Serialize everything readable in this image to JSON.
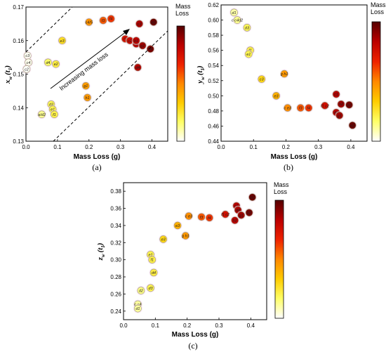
{
  "colors": {
    "cmap": [
      "#ffffff",
      "#ffff66",
      "#ffcc00",
      "#ff8800",
      "#ee2200",
      "#bb0000",
      "#550000"
    ],
    "marker_stroke": "#9a9a7a",
    "dashed_line": "#000000"
  },
  "chart_data": [
    {
      "type": "scatter",
      "panel_label": "(a)",
      "xlabel": "Mass Loss (g)",
      "ylabel": "x_w (t_1)",
      "ylabel_main": "x",
      "ylabel_sub": "w",
      "ylabel_arg": "(t",
      "ylabel_arg_sub": "1",
      "ylabel_close": ")",
      "xlim": [
        0,
        0.45
      ],
      "ylim": [
        0.13,
        0.17
      ],
      "xticks": [
        "0.0",
        "0.1",
        "0.2",
        "0.3",
        "0.4"
      ],
      "yticks": [
        "0.13",
        "0.14",
        "0.15",
        "0.16",
        "0.17"
      ],
      "colorbar_title": "Mass Loss",
      "annotation": "Increasing mass loss",
      "points": [
        {
          "label": "c3",
          "x": 0.005,
          "y": 0.1555
        },
        {
          "label": "c4",
          "x": 0.008,
          "y": 0.1535
        },
        {
          "label": "c2",
          "x": 0.002,
          "y": 0.1515
        },
        {
          "label": "d4",
          "x": 0.07,
          "y": 0.1535
        },
        {
          "label": "e2",
          "x": 0.095,
          "y": 0.153
        },
        {
          "label": "d3",
          "x": 0.08,
          "y": 0.141
        },
        {
          "label": "a/d2",
          "x": 0.05,
          "y": 0.138
        },
        {
          "label": "e1",
          "x": 0.085,
          "y": 0.1395
        },
        {
          "label": "f1",
          "x": 0.09,
          "y": 0.138
        },
        {
          "label": "e3",
          "x": 0.115,
          "y": 0.16
        },
        {
          "label": "g1",
          "x": 0.19,
          "y": 0.1465
        },
        {
          "label": "h1",
          "x": 0.195,
          "y": 0.143
        },
        {
          "label": "c4/5",
          "x": 0.2,
          "y": 0.1655
        },
        {
          "label": "f3",
          "x": 0.245,
          "y": 0.166
        },
        {
          "label": "f4",
          "x": 0.27,
          "y": 0.1665
        },
        {
          "label": "f1",
          "x": 0.315,
          "y": 0.1605
        },
        {
          "label": "c2",
          "x": 0.33,
          "y": 0.16
        },
        {
          "label": "h2",
          "x": 0.35,
          "y": 0.159
        },
        {
          "label": "g1",
          "x": 0.37,
          "y": 0.1585
        },
        {
          "label": "b1",
          "x": 0.35,
          "y": 0.16
        },
        {
          "label": "c4",
          "x": 0.395,
          "y": 0.1575
        },
        {
          "label": "d4",
          "x": 0.355,
          "y": 0.152
        },
        {
          "label": "c3",
          "x": 0.36,
          "y": 0.165
        },
        {
          "label": "e2",
          "x": 0.405,
          "y": 0.1655
        }
      ]
    },
    {
      "type": "scatter",
      "panel_label": "(b)",
      "xlabel": "Mass Loss (g)",
      "ylabel": "y_w (t_1)",
      "ylabel_main": "y",
      "ylabel_sub": "w",
      "ylabel_arg": "(t",
      "ylabel_arg_sub": "1",
      "ylabel_close": ")",
      "xlim": [
        0,
        0.45
      ],
      "ylim": [
        0.44,
        0.62
      ],
      "xticks": [
        "0.0",
        "0.1",
        "0.2",
        "0.3",
        "0.4"
      ],
      "yticks": [
        "0.44",
        "0.46",
        "0.48",
        "0.50",
        "0.52",
        "0.54",
        "0.56",
        "0.58",
        "0.60",
        "0.62"
      ],
      "colorbar_title": "Mass Loss",
      "points": [
        {
          "label": "d1",
          "x": 0.04,
          "y": 0.61
        },
        {
          "label": "c c4d2",
          "x": 0.05,
          "y": 0.6
        },
        {
          "label": "d3",
          "x": 0.08,
          "y": 0.59
        },
        {
          "label": "f1",
          "x": 0.09,
          "y": 0.56
        },
        {
          "label": "e1",
          "x": 0.085,
          "y": 0.555
        },
        {
          "label": "c3",
          "x": 0.125,
          "y": 0.522
        },
        {
          "label": "g h1",
          "x": 0.195,
          "y": 0.529
        },
        {
          "label": "e3",
          "x": 0.17,
          "y": 0.5
        },
        {
          "label": "c e3",
          "x": 0.205,
          "y": 0.484
        },
        {
          "label": "f3",
          "x": 0.245,
          "y": 0.484
        },
        {
          "label": "f4",
          "x": 0.27,
          "y": 0.484
        },
        {
          "label": "f1 c2",
          "x": 0.32,
          "y": 0.487
        },
        {
          "label": "c1",
          "x": 0.355,
          "y": 0.502
        },
        {
          "label": "h2",
          "x": 0.37,
          "y": 0.489
        },
        {
          "label": "d4",
          "x": 0.355,
          "y": 0.478
        },
        {
          "label": "g1",
          "x": 0.365,
          "y": 0.474
        },
        {
          "label": "b2",
          "x": 0.395,
          "y": 0.488
        },
        {
          "label": "e2",
          "x": 0.405,
          "y": 0.461
        }
      ]
    },
    {
      "type": "scatter",
      "panel_label": "(c)",
      "xlabel": "Mass Loss (g)",
      "ylabel": "z_w (t_1)",
      "ylabel_main": "z",
      "ylabel_sub": "w",
      "ylabel_arg": "(t",
      "ylabel_arg_sub": "1",
      "ylabel_close": ")",
      "xlim": [
        0,
        0.45
      ],
      "ylim": [
        0.23,
        0.39
      ],
      "xticks": [
        "0.0",
        "0.1",
        "0.2",
        "0.3",
        "0.4"
      ],
      "yticks": [
        "0.24",
        "0.26",
        "0.28",
        "0.30",
        "0.32",
        "0.34",
        "0.36",
        "0.38"
      ],
      "colorbar_title": "Mass Loss",
      "points": [
        {
          "label": "c c4",
          "x": 0.045,
          "y": 0.248
        },
        {
          "label": "d1",
          "x": 0.045,
          "y": 0.243
        },
        {
          "label": "d2",
          "x": 0.055,
          "y": 0.264
        },
        {
          "label": "d3",
          "x": 0.085,
          "y": 0.267
        },
        {
          "label": "d4",
          "x": 0.095,
          "y": 0.285
        },
        {
          "label": "e1",
          "x": 0.085,
          "y": 0.306
        },
        {
          "label": "f1",
          "x": 0.09,
          "y": 0.3
        },
        {
          "label": "e3",
          "x": 0.125,
          "y": 0.324
        },
        {
          "label": "e3",
          "x": 0.17,
          "y": 0.34
        },
        {
          "label": "g h1",
          "x": 0.195,
          "y": 0.328
        },
        {
          "label": "c e3",
          "x": 0.205,
          "y": 0.351
        },
        {
          "label": "f3",
          "x": 0.245,
          "y": 0.35
        },
        {
          "label": "f4",
          "x": 0.27,
          "y": 0.349
        },
        {
          "label": "f1 c2",
          "x": 0.32,
          "y": 0.353
        },
        {
          "label": "h2",
          "x": 0.35,
          "y": 0.346
        },
        {
          "label": "c1",
          "x": 0.355,
          "y": 0.363
        },
        {
          "label": "d4",
          "x": 0.36,
          "y": 0.358
        },
        {
          "label": "g1",
          "x": 0.37,
          "y": 0.352
        },
        {
          "label": "b2",
          "x": 0.395,
          "y": 0.355
        },
        {
          "label": "e2",
          "x": 0.405,
          "y": 0.373
        }
      ]
    }
  ]
}
